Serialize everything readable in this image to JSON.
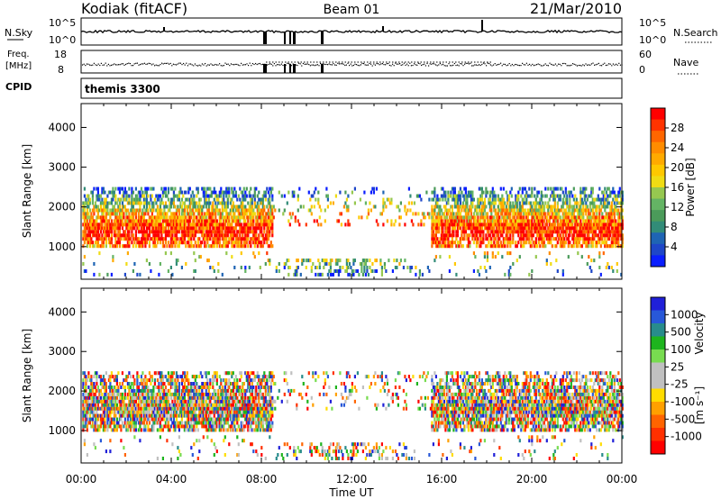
{
  "header": {
    "station": "Kodiak (fitACF)",
    "beam": "Beam 01",
    "date": "21/Mar/2010"
  },
  "noise_panel": {
    "left_label": "N.Sky",
    "left_ticks": [
      "10^5",
      "10^0"
    ],
    "right_label": "N.Search",
    "right_ticks": [
      "10^5",
      "10^0"
    ]
  },
  "freq_panel": {
    "left_label_1": "Freq.",
    "left_label_2": "[MHz]",
    "left_ticks": [
      "18",
      "8"
    ],
    "right_label": "Nave",
    "right_ticks": [
      "60",
      "0"
    ]
  },
  "cpid_panel": {
    "left_label": "CPID",
    "program": "themis 3300"
  },
  "range_axis": {
    "label": "Slant Range [km]",
    "ticks": [
      "4000",
      "3000",
      "2000",
      "1000"
    ]
  },
  "time_axis": {
    "label": "Time UT",
    "ticks": [
      "00:00",
      "04:00",
      "08:00",
      "12:00",
      "16:00",
      "20:00",
      "00:00"
    ]
  },
  "power_scale": {
    "title": "Power [dB]",
    "ticks": [
      "28",
      "24",
      "20",
      "16",
      "12",
      "8",
      "4"
    ],
    "colors": [
      "#ff0000",
      "#ff3300",
      "#ff6600",
      "#ff8c00",
      "#ffaa00",
      "#ffc800",
      "#f0dc14",
      "#96c850",
      "#64b464",
      "#4b9b5a",
      "#328c78",
      "#1e64b4",
      "#1e46c8",
      "#0a1eff"
    ]
  },
  "velocity_scale": {
    "title_1": "Velocity",
    "title_2": "[m s⁻¹]",
    "ticks": [
      "1000",
      "500",
      "100",
      "25",
      "-25",
      "-100",
      "-500",
      "-1000"
    ],
    "colors": [
      "#2020d8",
      "#2858d8",
      "#288c8c",
      "#1eb41e",
      "#78dc50",
      "#c0c0c0",
      "#c0c0c0",
      "#ffdc00",
      "#ffa000",
      "#ff6400",
      "#ff3000",
      "#ff0000"
    ]
  },
  "chart_data": [
    {
      "type": "heatmap",
      "title": "Power [dB]",
      "xlabel": "Time UT",
      "ylabel": "Slant Range [km]",
      "xlim_hours": [
        0,
        24
      ],
      "ylim": [
        180,
        4600
      ],
      "colorbar_ticks": [
        4,
        8,
        12,
        16,
        20,
        24,
        28
      ]
    },
    {
      "type": "heatmap",
      "title": "Velocity [m s⁻¹]",
      "xlabel": "Time UT",
      "ylabel": "Slant Range [km]",
      "xlim_hours": [
        0,
        24
      ],
      "ylim": [
        180,
        4600
      ],
      "colorbar_ticks": [
        -1000,
        -500,
        -100,
        -25,
        25,
        100,
        500,
        1000
      ]
    }
  ]
}
